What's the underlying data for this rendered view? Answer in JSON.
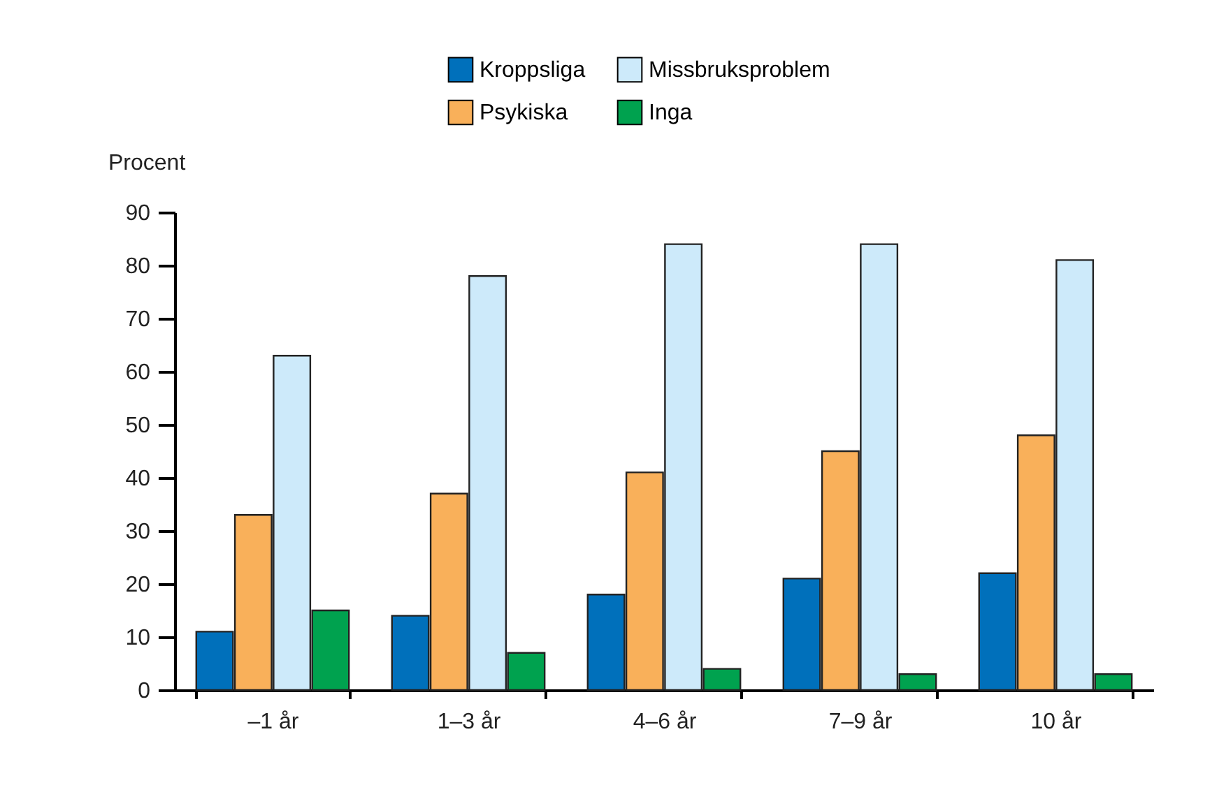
{
  "chart_data": {
    "type": "bar",
    "ylabel": "Procent",
    "categories": [
      "–1 år",
      "1–3 år",
      "4–6 år",
      "7–9 år",
      "10 år"
    ],
    "series": [
      {
        "name": "Kroppsliga",
        "color": "#0070bb",
        "values": [
          11,
          14,
          18,
          21,
          22
        ]
      },
      {
        "name": "Psykiska",
        "color": "#f9b05a",
        "values": [
          33,
          37,
          41,
          45,
          48
        ]
      },
      {
        "name": "Missbruksproblem",
        "color": "#cdeafa",
        "values": [
          63,
          78,
          84,
          84,
          81
        ]
      },
      {
        "name": "Inga",
        "color": "#00a24f",
        "values": [
          15,
          7,
          4,
          3,
          3
        ]
      }
    ],
    "ylim": [
      0,
      90
    ],
    "yticks": [
      0,
      10,
      20,
      30,
      40,
      50,
      60,
      70,
      80,
      90
    ],
    "grid": false,
    "legend": "top"
  }
}
